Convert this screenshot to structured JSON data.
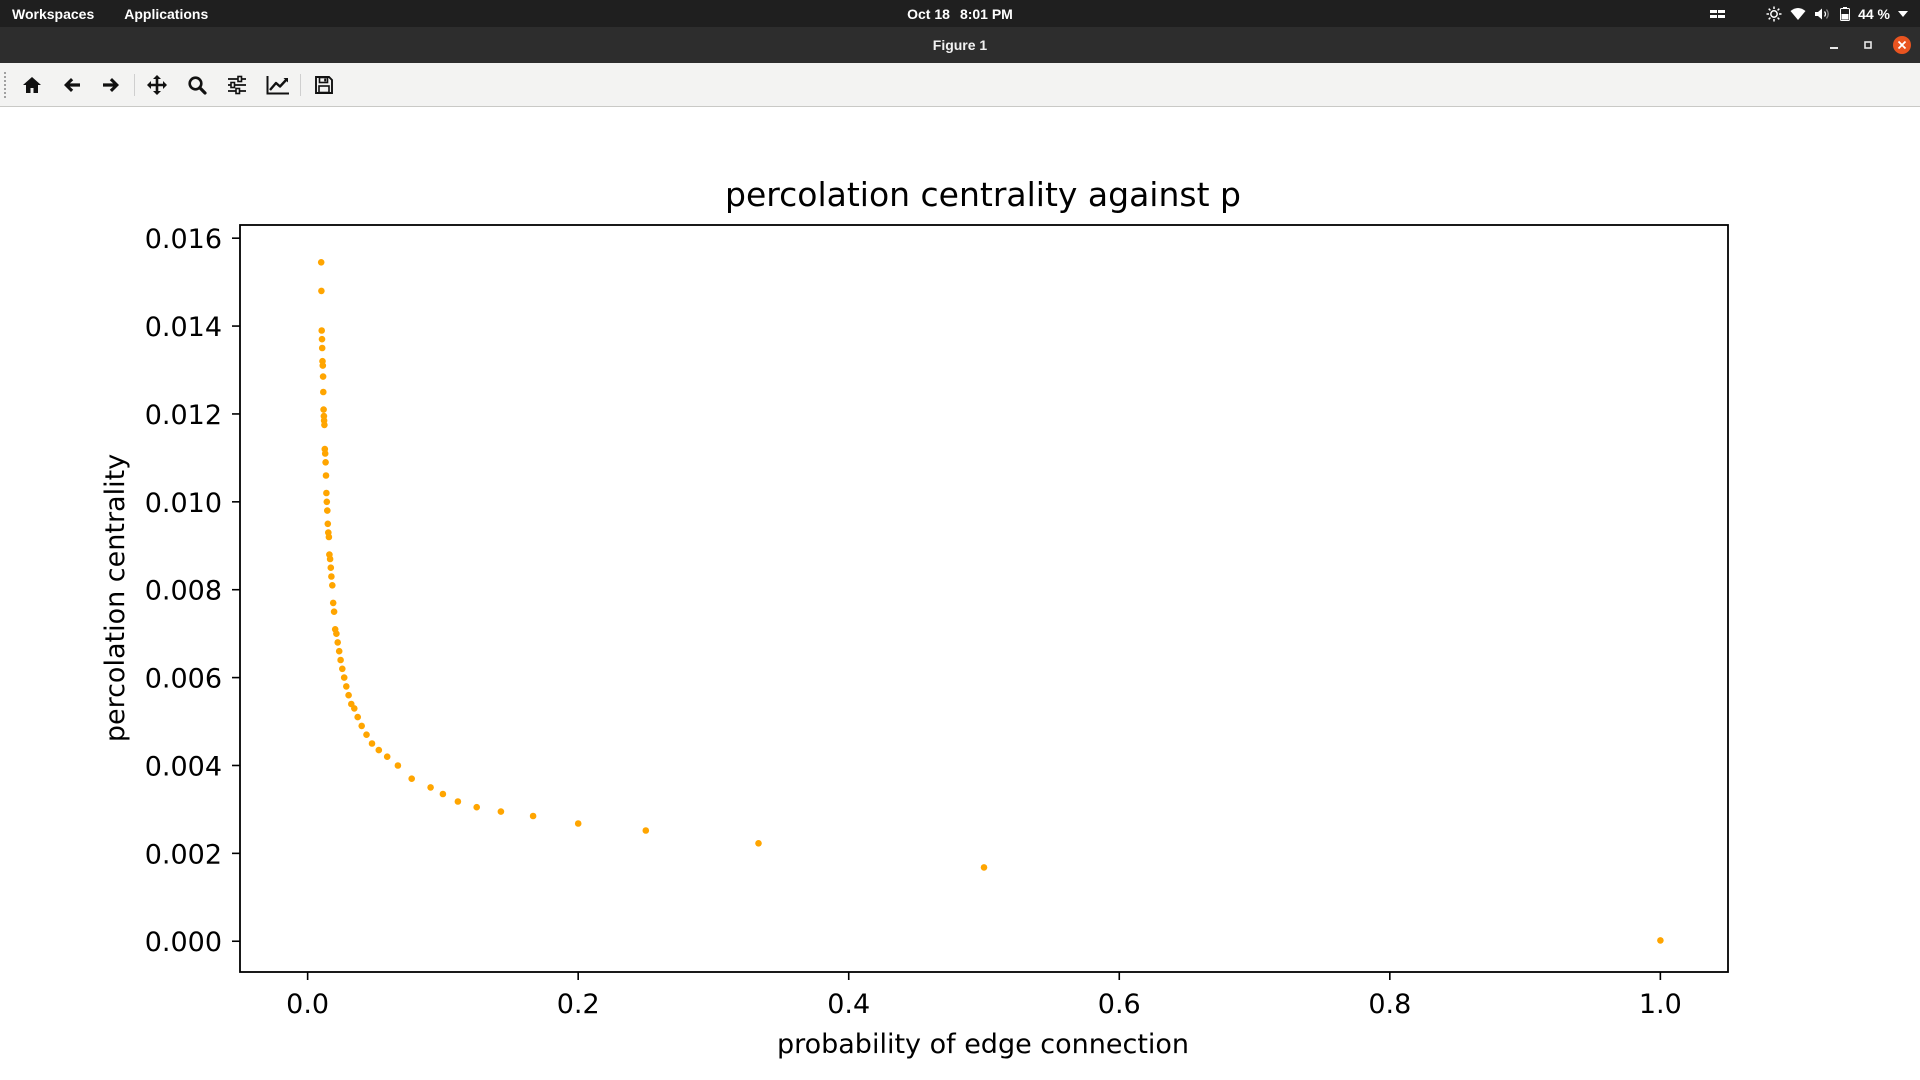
{
  "topbar": {
    "workspaces_label": "Workspaces",
    "applications_label": "Applications",
    "date": "Oct 18",
    "time": "8:01 PM",
    "battery_percent": "44 %"
  },
  "window": {
    "title": "Figure 1"
  },
  "toolbar": {
    "buttons": [
      "home",
      "back",
      "forward",
      "pan",
      "zoom",
      "configure-subplots",
      "edit-axes",
      "save"
    ]
  },
  "colors": {
    "marker": "#ffa500",
    "close_button": "#e95420",
    "topbar_bg": "#1f1f1f",
    "titlebar_bg": "#2d2d2d"
  },
  "chart_data": {
    "type": "scatter",
    "title": "percolation centrality against p",
    "xlabel": "probability of edge connection",
    "ylabel": "percolation centrality",
    "xlim": [
      -0.05,
      1.05
    ],
    "ylim": [
      -0.0007,
      0.0163
    ],
    "xticks": [
      "0.0",
      "0.2",
      "0.4",
      "0.6",
      "0.8",
      "1.0"
    ],
    "yticks": [
      "0.000",
      "0.002",
      "0.004",
      "0.006",
      "0.008",
      "0.010",
      "0.012",
      "0.014",
      "0.016"
    ],
    "grid": false,
    "legend": "none",
    "marker_color": "#ffa500",
    "x": [
      0.01,
      0.0102,
      0.0104,
      0.0106,
      0.0108,
      0.011,
      0.0112,
      0.0114,
      0.0116,
      0.0118,
      0.012,
      0.0122,
      0.0124,
      0.0127,
      0.013,
      0.0133,
      0.0136,
      0.0139,
      0.0142,
      0.0145,
      0.0149,
      0.0153,
      0.0157,
      0.0161,
      0.0166,
      0.0171,
      0.0176,
      0.0182,
      0.0189,
      0.0196,
      0.0204,
      0.0213,
      0.0222,
      0.0233,
      0.0244,
      0.0256,
      0.027,
      0.0286,
      0.0303,
      0.0323,
      0.0345,
      0.037,
      0.04,
      0.0435,
      0.0476,
      0.0526,
      0.0588,
      0.0667,
      0.0769,
      0.0909,
      0.1,
      0.1111,
      0.125,
      0.1429,
      0.1667,
      0.2,
      0.25,
      0.3333,
      0.5,
      1.0
    ],
    "y": [
      0.01545,
      0.0148,
      0.0139,
      0.0137,
      0.0135,
      0.0132,
      0.0131,
      0.01285,
      0.0125,
      0.0121,
      0.01195,
      0.01185,
      0.01175,
      0.0112,
      0.0111,
      0.0109,
      0.0106,
      0.0102,
      0.01,
      0.0098,
      0.0095,
      0.0093,
      0.0092,
      0.0088,
      0.0087,
      0.0085,
      0.0083,
      0.0081,
      0.0077,
      0.0075,
      0.0071,
      0.007,
      0.0068,
      0.0066,
      0.0064,
      0.0062,
      0.006,
      0.0058,
      0.0056,
      0.0054,
      0.0053,
      0.0051,
      0.0049,
      0.0047,
      0.0045,
      0.00435,
      0.0042,
      0.004,
      0.0037,
      0.0035,
      0.00335,
      0.00318,
      0.00305,
      0.00295,
      0.00285,
      0.00268,
      0.00252,
      0.00223,
      0.00168,
      2e-05
    ]
  }
}
